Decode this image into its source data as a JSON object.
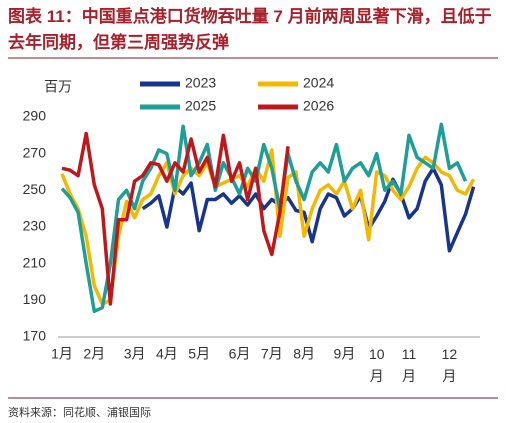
{
  "chart_data": {
    "type": "line",
    "title": "图表 11：中国重点港口货物吞吐量 7 月前两周显著下滑，且低于去年同期，但第三周强势反弹",
    "y_label": "百万",
    "source": "资料来源：同花顺、浦银国际",
    "categories": [
      "1月",
      null,
      null,
      null,
      "2月",
      null,
      null,
      null,
      null,
      "3月",
      null,
      null,
      null,
      "4月",
      null,
      null,
      null,
      "5月",
      null,
      null,
      null,
      null,
      "6月",
      null,
      null,
      null,
      "7月",
      null,
      null,
      null,
      "8月",
      null,
      null,
      null,
      null,
      "9月",
      null,
      null,
      null,
      "10月",
      null,
      null,
      null,
      "11月",
      null,
      null,
      null,
      null,
      "12月",
      null,
      null,
      null
    ],
    "ylim": [
      170,
      290
    ],
    "yticks": [
      170,
      190,
      210,
      230,
      250,
      270,
      290
    ],
    "legend": "top",
    "series": [
      {
        "name": "2023",
        "color": "#17358c",
        "values": [
          null,
          null,
          null,
          null,
          null,
          null,
          null,
          null,
          null,
          null,
          240,
          243,
          247,
          230,
          252,
          248,
          254,
          228,
          245,
          245,
          248,
          243,
          247,
          242,
          248,
          240,
          245,
          242,
          246,
          239,
          238,
          222,
          240,
          248,
          246,
          236,
          240,
          247,
          229,
          236,
          244,
          256,
          248,
          235,
          240,
          255,
          262,
          253,
          217,
          227,
          237,
          252
        ]
      },
      {
        "name": "2024",
        "color": "#f5b800",
        "values": [
          259,
          248,
          240,
          225,
          198,
          188,
          190,
          225,
          244,
          235,
          245,
          248,
          258,
          265,
          248,
          258,
          262,
          258,
          265,
          252,
          254,
          256,
          258,
          252,
          262,
          255,
          272,
          225,
          257,
          260,
          225,
          240,
          250,
          253,
          248,
          255,
          240,
          250,
          223,
          260,
          258,
          250,
          245,
          252,
          262,
          268,
          265,
          260,
          258,
          250,
          248,
          256
        ]
      },
      {
        "name": "2025",
        "color": "#1e9e96",
        "values": [
          251,
          246,
          238,
          210,
          184,
          186,
          210,
          245,
          250,
          240,
          255,
          262,
          272,
          270,
          250,
          285,
          258,
          265,
          275,
          250,
          265,
          257,
          248,
          262,
          255,
          275,
          262,
          240,
          270,
          255,
          245,
          260,
          265,
          260,
          275,
          255,
          262,
          265,
          258,
          270,
          250,
          255,
          248,
          280,
          268,
          265,
          262,
          286,
          262,
          265,
          255,
          null
        ]
      },
      {
        "name": "2026",
        "color": "#c0171d",
        "values": [
          262,
          261,
          258,
          281,
          253,
          240,
          188,
          234,
          234,
          255,
          258,
          265,
          264,
          255,
          265,
          260,
          278,
          260,
          268,
          252,
          280,
          255,
          265,
          245,
          262,
          228,
          215,
          238,
          274,
          null,
          null,
          null,
          null,
          null,
          null,
          null,
          null,
          null,
          null,
          null,
          null,
          null,
          null,
          null,
          null,
          null,
          null,
          null,
          null,
          null,
          null,
          null
        ]
      }
    ]
  }
}
